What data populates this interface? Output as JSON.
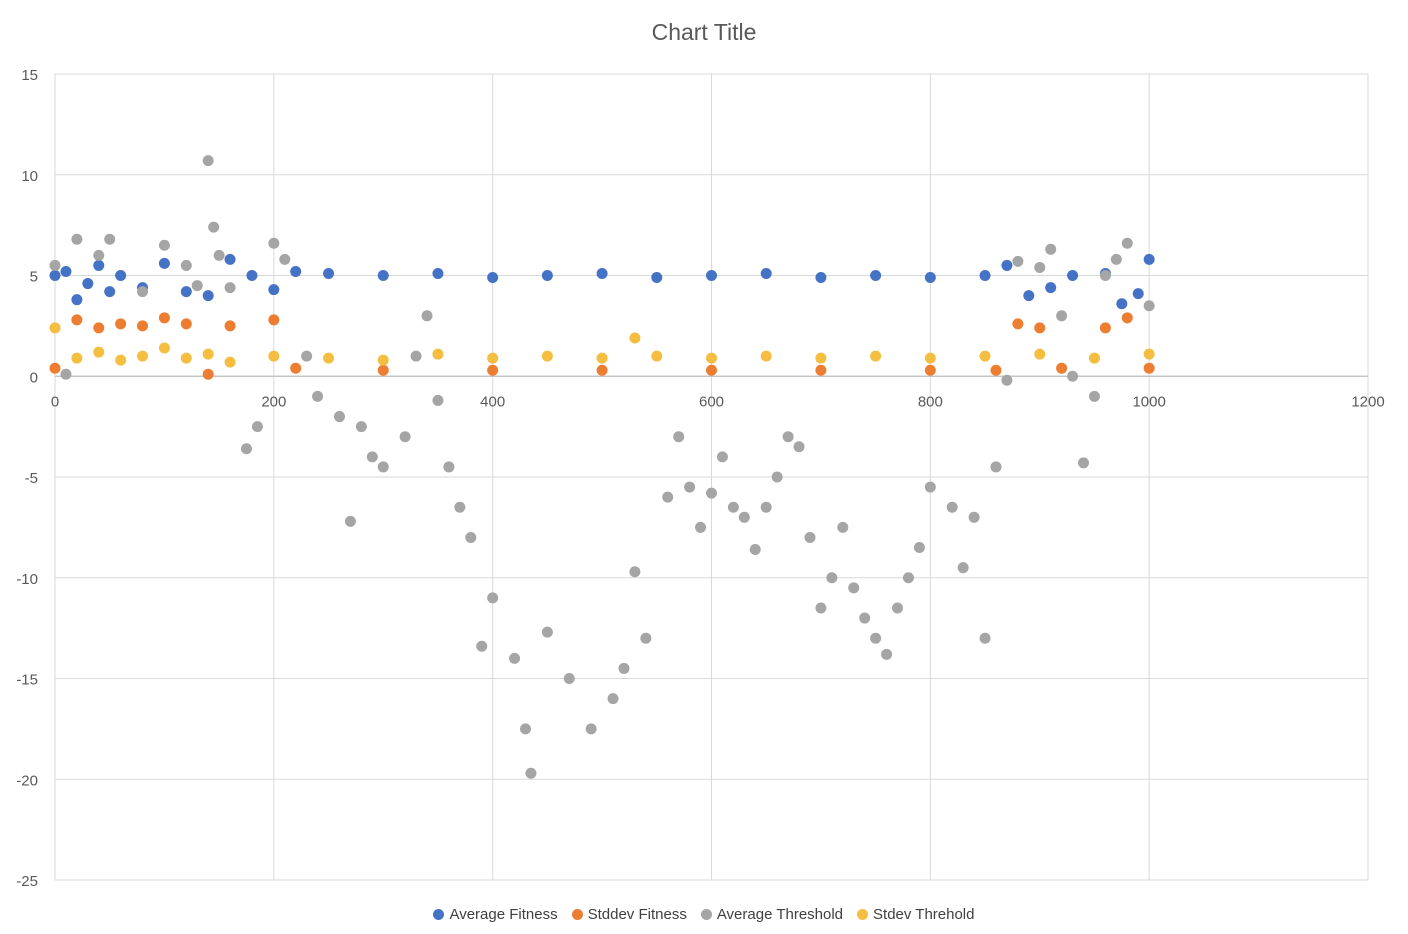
{
  "chart_data": {
    "type": "scatter",
    "title": "Chart Title",
    "xlim": [
      0,
      1200
    ],
    "ylim": [
      -25,
      15
    ],
    "x_ticks": [
      0,
      200,
      400,
      600,
      800,
      1000,
      1200
    ],
    "y_ticks": [
      15,
      10,
      5,
      0,
      -5,
      -10,
      -15,
      -20,
      -25
    ],
    "grid": true,
    "legend_position": "bottom",
    "series": [
      {
        "name": "Average Fitness",
        "color": "#4472C4",
        "points": [
          [
            0,
            5.0
          ],
          [
            10,
            5.2
          ],
          [
            20,
            3.8
          ],
          [
            30,
            4.6
          ],
          [
            40,
            5.5
          ],
          [
            50,
            4.2
          ],
          [
            60,
            5.0
          ],
          [
            80,
            4.4
          ],
          [
            100,
            5.6
          ],
          [
            120,
            4.2
          ],
          [
            140,
            4.0
          ],
          [
            160,
            5.8
          ],
          [
            180,
            5.0
          ],
          [
            200,
            4.3
          ],
          [
            220,
            5.2
          ],
          [
            250,
            5.1
          ],
          [
            300,
            5.0
          ],
          [
            350,
            5.1
          ],
          [
            400,
            4.9
          ],
          [
            450,
            5.0
          ],
          [
            500,
            5.1
          ],
          [
            550,
            4.9
          ],
          [
            600,
            5.0
          ],
          [
            650,
            5.1
          ],
          [
            700,
            4.9
          ],
          [
            750,
            5.0
          ],
          [
            800,
            4.9
          ],
          [
            850,
            5.0
          ],
          [
            870,
            5.5
          ],
          [
            890,
            4.0
          ],
          [
            910,
            4.4
          ],
          [
            930,
            5.0
          ],
          [
            960,
            5.1
          ],
          [
            975,
            3.6
          ],
          [
            990,
            4.1
          ],
          [
            1000,
            5.8
          ]
        ]
      },
      {
        "name": "Stddev Fitness",
        "color": "#ED7D31",
        "points": [
          [
            0,
            0.4
          ],
          [
            20,
            2.8
          ],
          [
            40,
            2.4
          ],
          [
            60,
            2.6
          ],
          [
            80,
            2.5
          ],
          [
            100,
            2.9
          ],
          [
            120,
            2.6
          ],
          [
            140,
            0.1
          ],
          [
            160,
            2.5
          ],
          [
            200,
            2.8
          ],
          [
            220,
            0.4
          ],
          [
            300,
            0.3
          ],
          [
            400,
            0.3
          ],
          [
            500,
            0.3
          ],
          [
            600,
            0.3
          ],
          [
            700,
            0.3
          ],
          [
            800,
            0.3
          ],
          [
            860,
            0.3
          ],
          [
            880,
            2.6
          ],
          [
            900,
            2.4
          ],
          [
            920,
            0.4
          ],
          [
            960,
            2.4
          ],
          [
            980,
            2.9
          ],
          [
            1000,
            0.4
          ]
        ]
      },
      {
        "name": "Average Threshold",
        "color": "#A5A5A5",
        "points": [
          [
            0,
            5.5
          ],
          [
            10,
            0.1
          ],
          [
            20,
            6.8
          ],
          [
            40,
            6.0
          ],
          [
            50,
            6.8
          ],
          [
            80,
            4.2
          ],
          [
            100,
            6.5
          ],
          [
            120,
            5.5
          ],
          [
            130,
            4.5
          ],
          [
            140,
            10.7
          ],
          [
            145,
            7.4
          ],
          [
            150,
            6.0
          ],
          [
            160,
            4.4
          ],
          [
            175,
            -3.6
          ],
          [
            185,
            -2.5
          ],
          [
            200,
            6.6
          ],
          [
            210,
            5.8
          ],
          [
            230,
            1.0
          ],
          [
            240,
            -1.0
          ],
          [
            260,
            -2.0
          ],
          [
            270,
            -7.2
          ],
          [
            280,
            -2.5
          ],
          [
            290,
            -4.0
          ],
          [
            300,
            -4.5
          ],
          [
            320,
            -3.0
          ],
          [
            330,
            1.0
          ],
          [
            340,
            3.0
          ],
          [
            350,
            -1.2
          ],
          [
            360,
            -4.5
          ],
          [
            370,
            -6.5
          ],
          [
            380,
            -8.0
          ],
          [
            390,
            -13.4
          ],
          [
            400,
            -11.0
          ],
          [
            420,
            -14.0
          ],
          [
            430,
            -17.5
          ],
          [
            435,
            -19.7
          ],
          [
            450,
            -12.7
          ],
          [
            470,
            -15.0
          ],
          [
            490,
            -17.5
          ],
          [
            510,
            -16.0
          ],
          [
            520,
            -14.5
          ],
          [
            530,
            -9.7
          ],
          [
            540,
            -13.0
          ],
          [
            560,
            -6.0
          ],
          [
            570,
            -3.0
          ],
          [
            580,
            -5.5
          ],
          [
            590,
            -7.5
          ],
          [
            600,
            -5.8
          ],
          [
            610,
            -4.0
          ],
          [
            620,
            -6.5
          ],
          [
            630,
            -7.0
          ],
          [
            640,
            -8.6
          ],
          [
            650,
            -6.5
          ],
          [
            660,
            -5.0
          ],
          [
            670,
            -3.0
          ],
          [
            680,
            -3.5
          ],
          [
            690,
            -8.0
          ],
          [
            700,
            -11.5
          ],
          [
            710,
            -10.0
          ],
          [
            720,
            -7.5
          ],
          [
            730,
            -10.5
          ],
          [
            740,
            -12.0
          ],
          [
            750,
            -13.0
          ],
          [
            760,
            -13.8
          ],
          [
            770,
            -11.5
          ],
          [
            780,
            -10.0
          ],
          [
            790,
            -8.5
          ],
          [
            800,
            -5.5
          ],
          [
            820,
            -6.5
          ],
          [
            830,
            -9.5
          ],
          [
            840,
            -7.0
          ],
          [
            850,
            -13.0
          ],
          [
            860,
            -4.5
          ],
          [
            870,
            -0.2
          ],
          [
            880,
            5.7
          ],
          [
            900,
            5.4
          ],
          [
            910,
            6.3
          ],
          [
            920,
            3.0
          ],
          [
            930,
            0.0
          ],
          [
            940,
            -4.3
          ],
          [
            950,
            -1.0
          ],
          [
            960,
            5.0
          ],
          [
            970,
            5.8
          ],
          [
            980,
            6.6
          ],
          [
            1000,
            3.5
          ]
        ]
      },
      {
        "name": "Stdev Threhold",
        "color": "#F5BE41",
        "points": [
          [
            0,
            2.4
          ],
          [
            20,
            0.9
          ],
          [
            40,
            1.2
          ],
          [
            60,
            0.8
          ],
          [
            80,
            1.0
          ],
          [
            100,
            1.4
          ],
          [
            120,
            0.9
          ],
          [
            140,
            1.1
          ],
          [
            160,
            0.7
          ],
          [
            200,
            1.0
          ],
          [
            250,
            0.9
          ],
          [
            300,
            0.8
          ],
          [
            350,
            1.1
          ],
          [
            400,
            0.9
          ],
          [
            450,
            1.0
          ],
          [
            500,
            0.9
          ],
          [
            530,
            1.9
          ],
          [
            550,
            1.0
          ],
          [
            600,
            0.9
          ],
          [
            650,
            1.0
          ],
          [
            700,
            0.9
          ],
          [
            750,
            1.0
          ],
          [
            800,
            0.9
          ],
          [
            850,
            1.0
          ],
          [
            900,
            1.1
          ],
          [
            950,
            0.9
          ],
          [
            1000,
            1.1
          ]
        ]
      }
    ]
  }
}
